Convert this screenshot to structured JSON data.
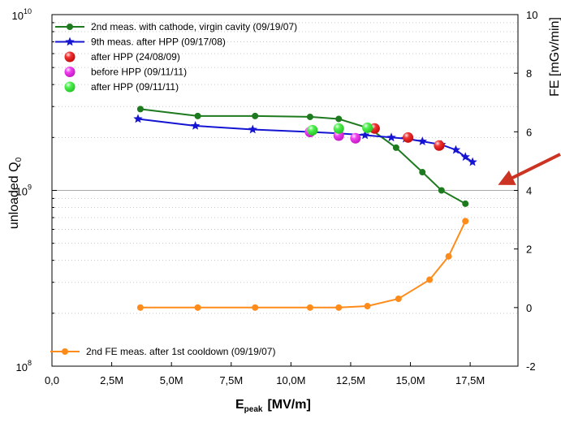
{
  "chart_data": {
    "type": "line",
    "x_axis": {
      "label": "E",
      "label_subscript": "peak",
      "label_unit": "[MV/m]",
      "range": [
        0,
        19500000
      ],
      "ticks": [
        0,
        2500000,
        5000000,
        7500000,
        10000000,
        12500000,
        15000000,
        17500000
      ],
      "tick_labels": [
        "0,0",
        "2,5M",
        "5,0M",
        "7,5M",
        "10,0M",
        "12,5M",
        "15,0M",
        "17,5M"
      ]
    },
    "y_axis_left": {
      "label": "unloaded Q",
      "label_subscript": "0",
      "scale": "log",
      "range": [
        100000000,
        10000000000
      ],
      "tick_labels": [
        {
          "base": "10",
          "exp": "8",
          "value": 100000000
        },
        {
          "base": "10",
          "exp": "9",
          "value": 1000000000
        },
        {
          "base": "10",
          "exp": "10",
          "value": 10000000000
        }
      ]
    },
    "y_axis_right": {
      "label": "FE [mGv/min]",
      "scale": "linear",
      "range": [
        -2,
        10
      ],
      "ticks": [
        -2,
        0,
        2,
        4,
        6,
        8,
        10
      ],
      "tick_labels": [
        "-2",
        "0",
        "2",
        "4",
        "6",
        "8",
        "10"
      ]
    },
    "reference_line_y": 1000000000,
    "grid": "dotted horizontal",
    "series": [
      {
        "name": "2nd meas. with cathode, virgin cavity (09/19/07)",
        "axis": "left",
        "marker": "circle",
        "line": true,
        "color": "#1e7a1e",
        "x": [
          3700000,
          6100000,
          8500000,
          10800000,
          12000000,
          13300000,
          14400000,
          15500000,
          16300000,
          17300000
        ],
        "y": [
          2900000000,
          2650000000,
          2650000000,
          2620000000,
          2550000000,
          2250000000,
          1750000000,
          1270000000,
          1000000000,
          840000000
        ]
      },
      {
        "name": "9th meas. after HPP (09/17/08)",
        "axis": "left",
        "marker": "star",
        "line": true,
        "color": "#1414d2",
        "x": [
          3600000,
          6000000,
          8400000,
          10800000,
          12000000,
          13100000,
          14200000,
          14800000,
          15500000,
          16300000,
          16900000,
          17300000,
          17600000
        ],
        "y": [
          2550000000,
          2330000000,
          2220000000,
          2150000000,
          2110000000,
          2060000000,
          2000000000,
          1970000000,
          1900000000,
          1820000000,
          1700000000,
          1550000000,
          1450000000
        ]
      },
      {
        "name": "after HPP (24/08/09)",
        "axis": "left",
        "marker": "circle",
        "line": false,
        "color": "#ee1111",
        "x": [
          13500000,
          14900000,
          16200000
        ],
        "y": [
          2250000000,
          2000000000,
          1800000000
        ]
      },
      {
        "name": "before HPP (09/11/11)",
        "axis": "left",
        "marker": "circle",
        "line": false,
        "color": "#ee22ee",
        "x": [
          10800000,
          12000000,
          12700000
        ],
        "y": [
          2150000000,
          2050000000,
          1980000000
        ]
      },
      {
        "name": "after HPP (09/11/11)",
        "axis": "left",
        "marker": "circle",
        "line": false,
        "color": "#33ee33",
        "x": [
          10900000,
          12000000,
          13200000
        ],
        "y": [
          2200000000,
          2250000000,
          2270000000
        ]
      },
      {
        "name": "2nd FE meas. after 1st cooldown (09/19/07)",
        "axis": "right",
        "marker": "circle",
        "line": true,
        "color": "#ff8c1a",
        "x": [
          3700000,
          6100000,
          8500000,
          10800000,
          12000000,
          13200000,
          14500000,
          15800000,
          16600000,
          17300000
        ],
        "y": [
          0,
          0,
          0,
          0,
          0,
          0.05,
          0.3,
          0.95,
          1.75,
          2.95
        ]
      }
    ]
  }
}
